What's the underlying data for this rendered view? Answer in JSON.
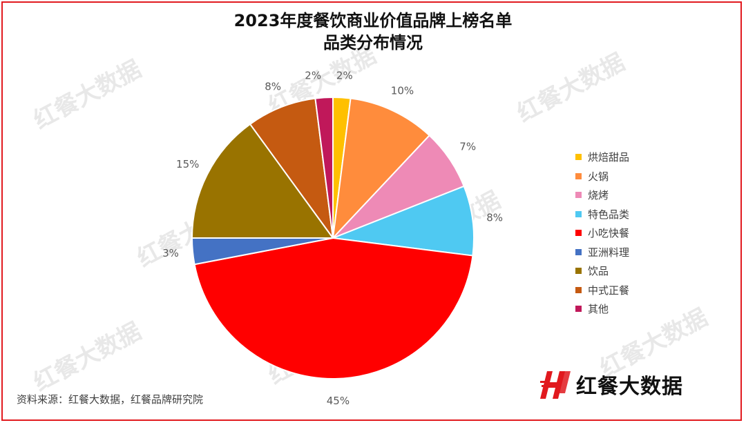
{
  "chart_data": {
    "type": "pie",
    "title": "2023年度餐饮商业价值品牌上榜名单",
    "subtitle": "品类分布情况",
    "slices": [
      {
        "label": "烘焙甜品",
        "value": 2,
        "label_text": "2%",
        "color": "#ffc000"
      },
      {
        "label": "火锅",
        "value": 10,
        "label_text": "10%",
        "color": "#ff8c3c"
      },
      {
        "label": "烧烤",
        "value": 7,
        "label_text": "7%",
        "color": "#ee8ab6"
      },
      {
        "label": "特色品类",
        "value": 8,
        "label_text": "8%",
        "color": "#4fc9f2"
      },
      {
        "label": "小吃快餐",
        "value": 45,
        "label_text": "45%",
        "color": "#ff0000"
      },
      {
        "label": "亚洲料理",
        "value": 3,
        "label_text": "3%",
        "color": "#4472c4"
      },
      {
        "label": "饮品",
        "value": 15,
        "label_text": "15%",
        "color": "#997300"
      },
      {
        "label": "中式正餐",
        "value": 8,
        "label_text": "8%",
        "color": "#c55a11"
      },
      {
        "label": "其他",
        "value": 2,
        "label_text": "2%",
        "color": "#c0185a"
      }
    ],
    "legend_position": "right"
  },
  "source_text": "资料来源：红餐大数据，红餐品牌研究院",
  "brand": {
    "name": "红餐大数据",
    "logo_color": "#e1191e"
  },
  "watermark_text": "红餐大数据"
}
